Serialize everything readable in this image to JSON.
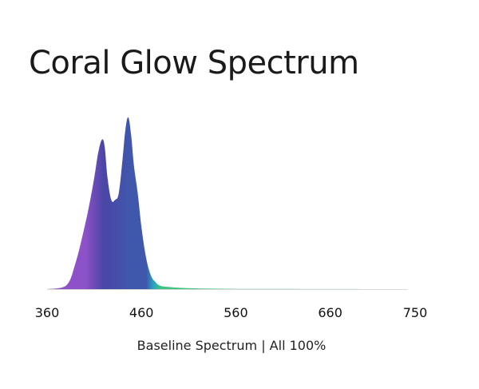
{
  "chart_data": {
    "type": "area",
    "title": "Coral Glow Spectrum",
    "caption": "Baseline Spectrum | All 100%",
    "xlabel": "",
    "ylabel": "",
    "xlim": [
      360,
      750
    ],
    "ylim": [
      0,
      1
    ],
    "x_ticks": [
      360,
      460,
      560,
      660,
      750
    ],
    "grid": false,
    "legend": "none",
    "colors": {
      "violet": "#8e52c8",
      "indigo": "#4a46a6",
      "blue": "#3f58ac",
      "cyan": "#2aa6c0",
      "green": "#3ec27e",
      "baseline": "#d8d8d8"
    },
    "series": [
      {
        "x": [
          360,
          380,
          390,
          400,
          405,
          410,
          414,
          418,
          421,
          424,
          428,
          432,
          436,
          440,
          443,
          446,
          449,
          452,
          456,
          460,
          465,
          470,
          475,
          480,
          490,
          500,
          520,
          550,
          600,
          650,
          700,
          750
        ],
        "y": [
          0.0,
          0.02,
          0.15,
          0.37,
          0.5,
          0.65,
          0.79,
          0.87,
          0.83,
          0.65,
          0.52,
          0.52,
          0.56,
          0.76,
          0.93,
          1.0,
          0.9,
          0.72,
          0.56,
          0.36,
          0.18,
          0.08,
          0.04,
          0.02,
          0.012,
          0.008,
          0.004,
          0.002,
          0.001,
          0.0005,
          0.0002,
          0.0
        ]
      }
    ]
  }
}
